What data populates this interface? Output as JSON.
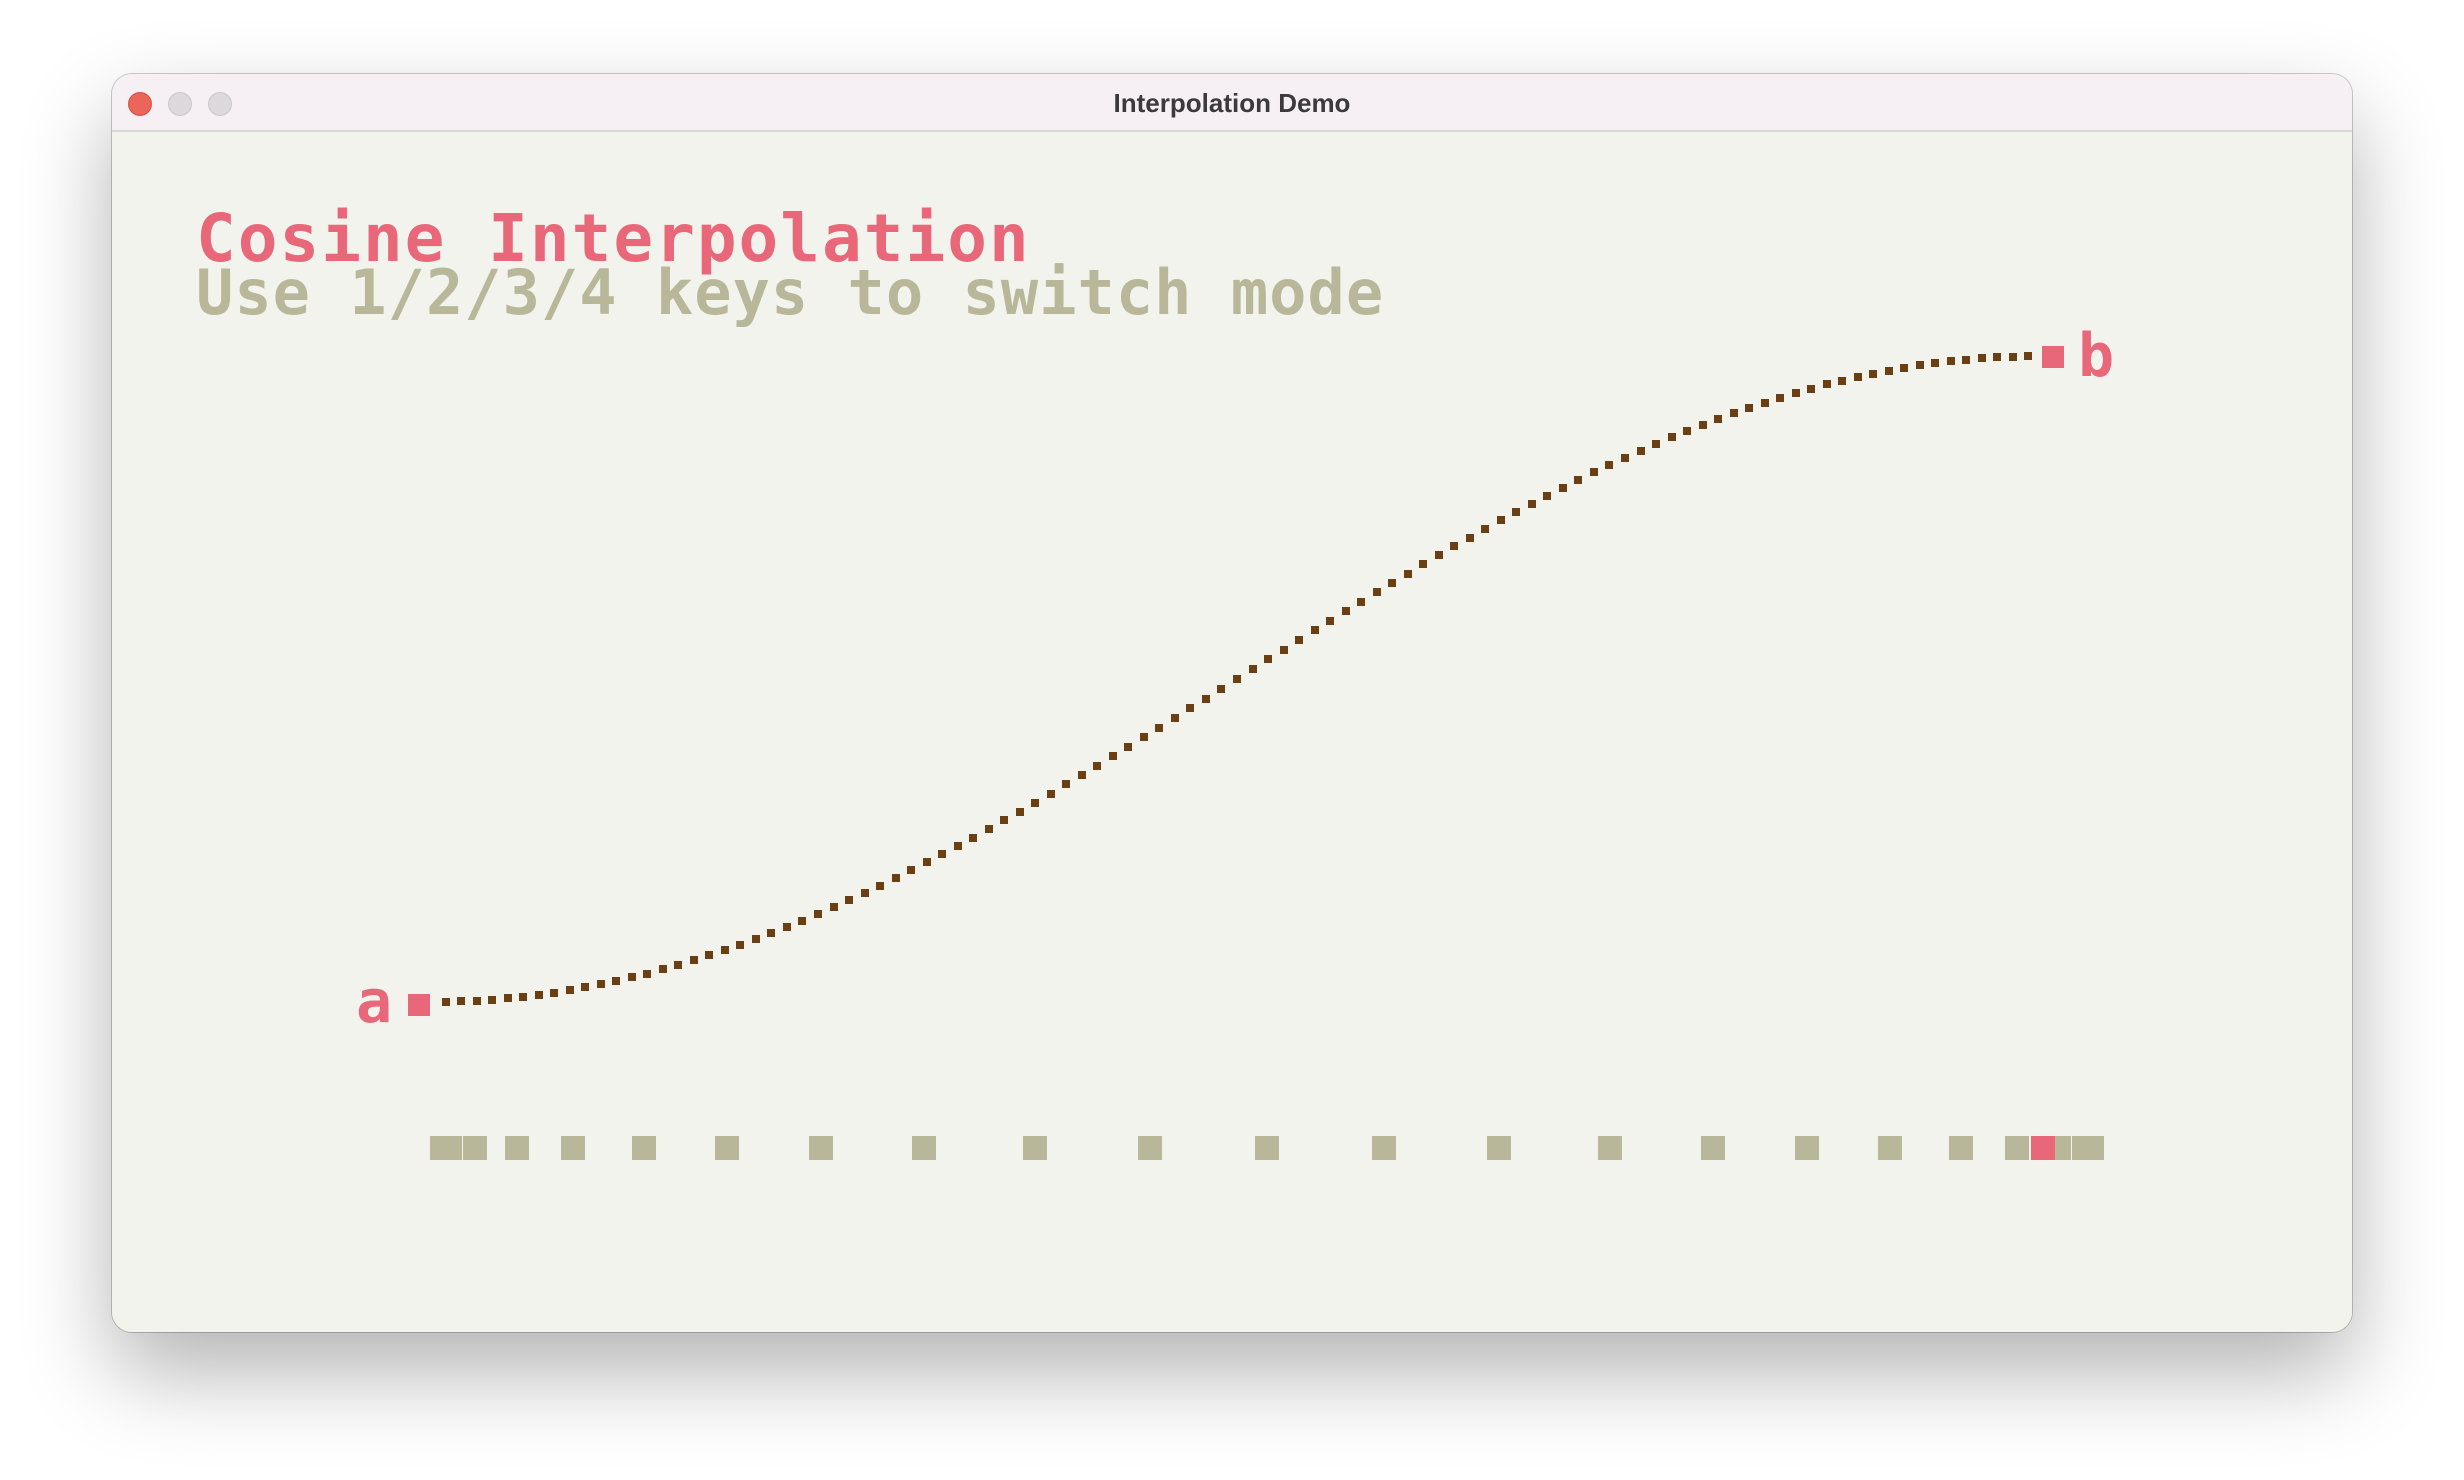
{
  "window": {
    "title": "Interpolation Demo",
    "controls": [
      "close",
      "minimize",
      "zoom"
    ]
  },
  "demo": {
    "title": "Cosine Interpolation",
    "hint": "Use 1/2/3/4 keys to switch mode",
    "mode": "cosine",
    "point_a_label": "a",
    "point_b_label": "b",
    "progress": 1.0
  },
  "colors": {
    "accent": "#e8687a",
    "curve": "#6b3f14",
    "muted": "#b9b79a",
    "background": "#f3f3ee"
  }
}
